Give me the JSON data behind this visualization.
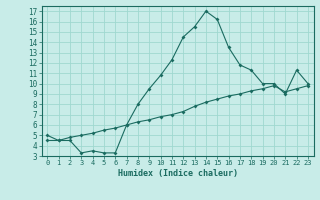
{
  "xlabel": "Humidex (Indice chaleur)",
  "bg_color": "#c8ece8",
  "grid_color": "#a0d8d0",
  "line_color": "#1a6b60",
  "xlim": [
    -0.5,
    23.5
  ],
  "ylim": [
    3,
    17.5
  ],
  "xticks": [
    0,
    1,
    2,
    3,
    4,
    5,
    6,
    7,
    8,
    9,
    10,
    11,
    12,
    13,
    14,
    15,
    16,
    17,
    18,
    19,
    20,
    21,
    22,
    23
  ],
  "yticks": [
    3,
    4,
    5,
    6,
    7,
    8,
    9,
    10,
    11,
    12,
    13,
    14,
    15,
    16,
    17
  ],
  "series1_x": [
    0,
    1,
    2,
    3,
    4,
    5,
    6,
    7,
    8,
    9,
    10,
    11,
    12,
    13,
    14,
    15,
    16,
    17,
    18,
    19,
    20,
    21,
    22,
    23
  ],
  "series1_y": [
    5.0,
    4.5,
    4.5,
    3.3,
    3.5,
    3.3,
    3.3,
    6.0,
    8.0,
    9.5,
    10.8,
    12.3,
    14.5,
    15.5,
    17.0,
    16.2,
    13.5,
    11.8,
    11.3,
    10.0,
    10.0,
    9.0,
    11.3,
    10.0
  ],
  "series2_x": [
    0,
    1,
    2,
    3,
    4,
    5,
    6,
    7,
    8,
    9,
    10,
    11,
    12,
    13,
    14,
    15,
    16,
    17,
    18,
    19,
    20,
    21,
    22,
    23
  ],
  "series2_y": [
    4.5,
    4.5,
    4.8,
    5.0,
    5.2,
    5.5,
    5.7,
    6.0,
    6.3,
    6.5,
    6.8,
    7.0,
    7.3,
    7.8,
    8.2,
    8.5,
    8.8,
    9.0,
    9.3,
    9.5,
    9.8,
    9.2,
    9.5,
    9.8
  ]
}
